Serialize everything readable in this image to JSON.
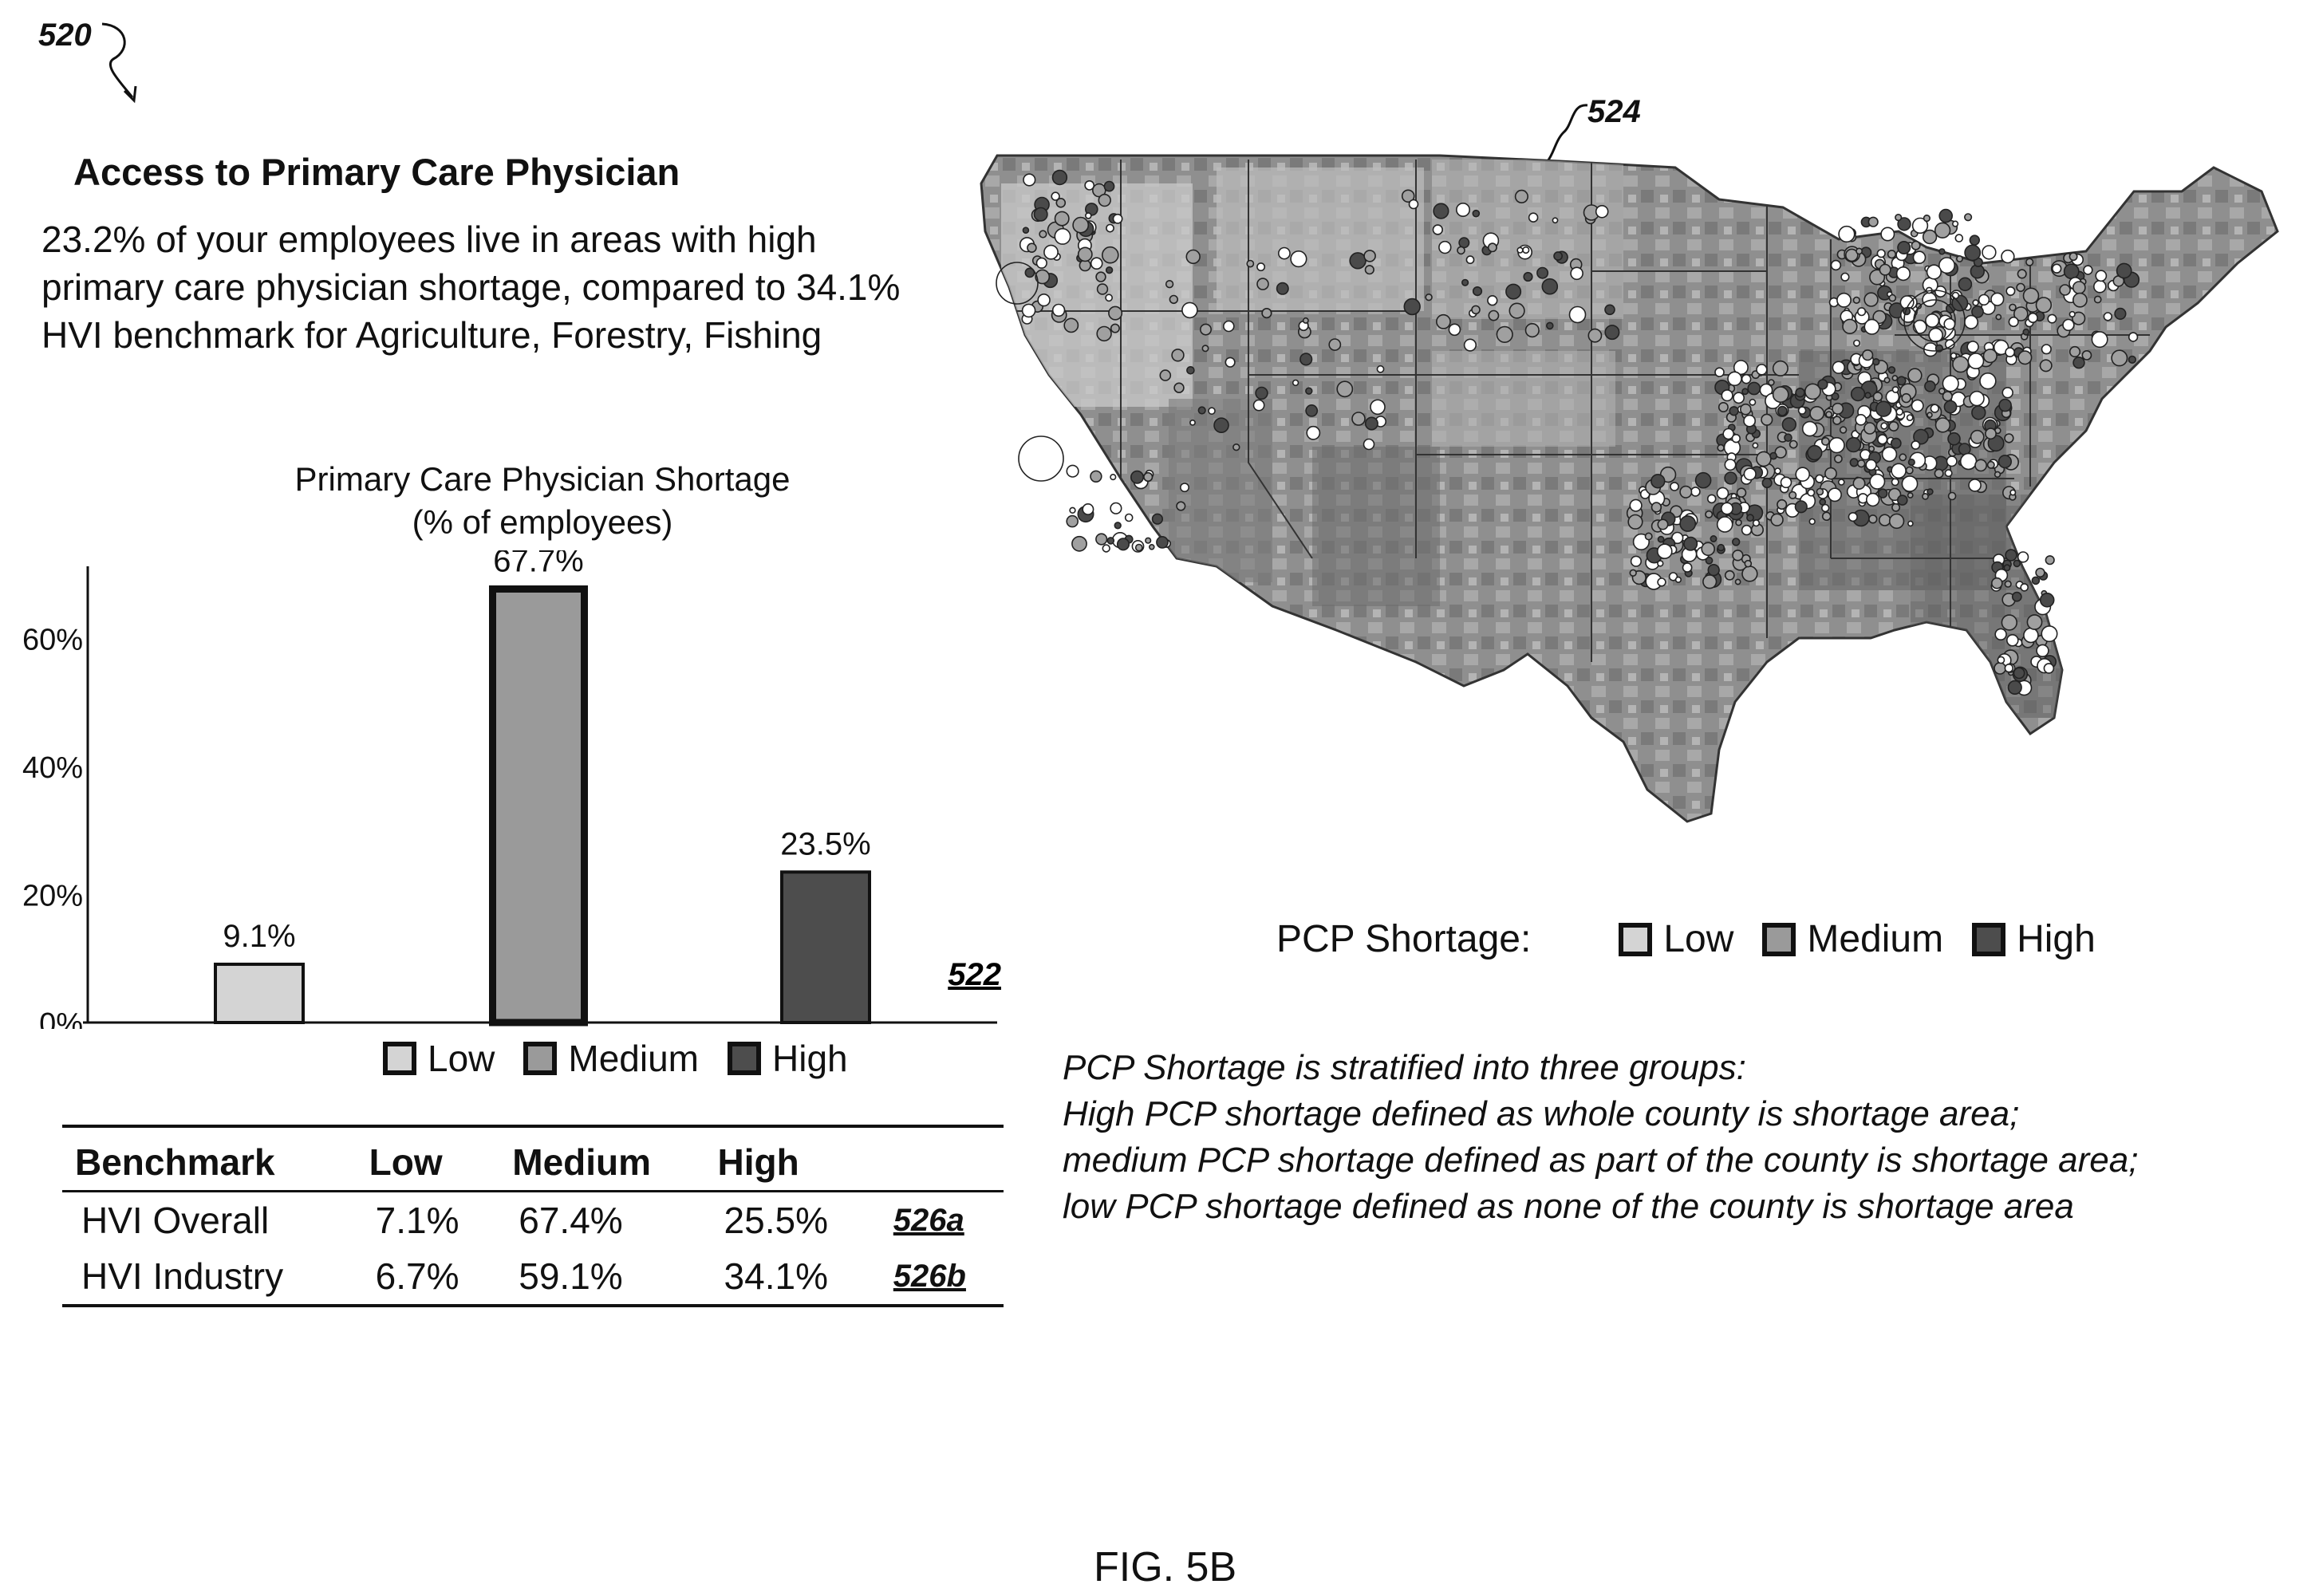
{
  "figure": {
    "ref_panel": "520",
    "ref_chart": "522",
    "ref_map": "524",
    "caption": "FIG. 5B"
  },
  "panel": {
    "title": "Access to Primary Care Physician",
    "summary": "23.2% of your employees live in areas with high primary care physician shortage, compared to 34.1% HVI benchmark for  Agriculture, Forestry, Fishing"
  },
  "chart_data": {
    "type": "bar",
    "title": "Primary Care Physician Shortage",
    "subtitle": "(% of employees)",
    "categories": [
      "Low",
      "Medium",
      "High"
    ],
    "values": [
      9.1,
      67.7,
      23.5
    ],
    "value_labels": [
      "9.1%",
      "67.7%",
      "23.5%"
    ],
    "ylim": [
      0,
      70
    ],
    "yticks": [
      0,
      20,
      40,
      60
    ],
    "ytick_labels": [
      "0%",
      "20%",
      "40%",
      "60%"
    ],
    "colors": [
      "#d4d4d4",
      "#9a9a9a",
      "#4d4d4d"
    ],
    "legend": [
      "Low",
      "Medium",
      "High"
    ],
    "legend_position": "bottom"
  },
  "benchmark_table": {
    "headers": [
      "Benchmark",
      "Low",
      "Medium",
      "High"
    ],
    "rows": [
      {
        "name": "HVI Overall",
        "low": "7.1%",
        "medium": "67.4%",
        "high": "25.5%",
        "ref": "526a"
      },
      {
        "name": "HVI Industry",
        "low": "6.7%",
        "medium": "59.1%",
        "high": "34.1%",
        "ref": "526b"
      }
    ]
  },
  "map": {
    "legend_label": "PCP Shortage:",
    "legend": [
      "Low",
      "Medium",
      "High"
    ],
    "note_lines": [
      "PCP Shortage is stratified into three groups:",
      "High PCP shortage defined as whole county is shortage area;",
      "medium PCP shortage defined as part of the county is shortage area;",
      "low PCP shortage defined as none of the county is shortage area"
    ]
  },
  "colors": {
    "low": "#d4d4d4",
    "medium": "#9a9a9a",
    "high": "#4d4d4d"
  }
}
